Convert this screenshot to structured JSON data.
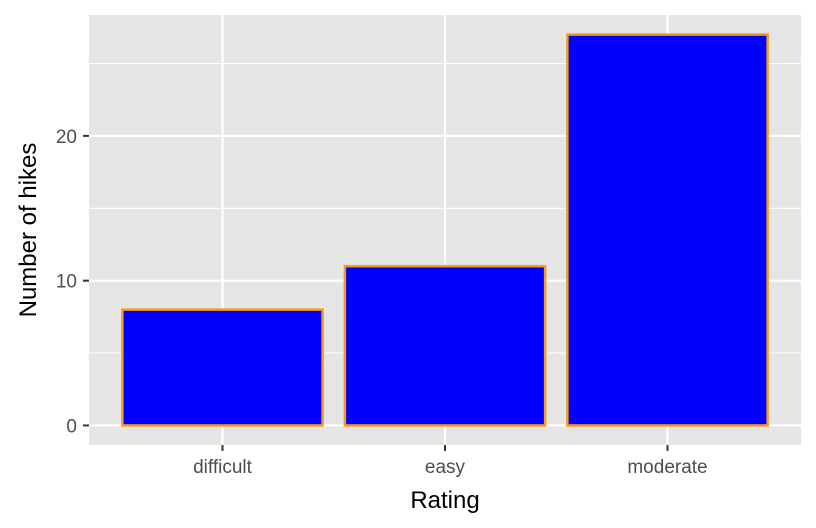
{
  "chart_data": {
    "type": "bar",
    "categories": [
      "difficult",
      "easy",
      "moderate"
    ],
    "values": [
      8,
      11,
      27
    ],
    "title": "",
    "xlabel": "Rating",
    "ylabel": "Number of hikes",
    "ylim": [
      -1.35,
      28.35
    ],
    "yticks": [
      0,
      10,
      20
    ],
    "ytick_labels": [
      "0",
      "10",
      "20"
    ],
    "grid": true,
    "legend": "none",
    "colors": {
      "bar_fill": "#0000FF",
      "bar_outline": "#F39C1F",
      "panel_background": "#E5E5E5",
      "grid_line": "#FFFFFF",
      "tick_mark": "#333333"
    }
  }
}
